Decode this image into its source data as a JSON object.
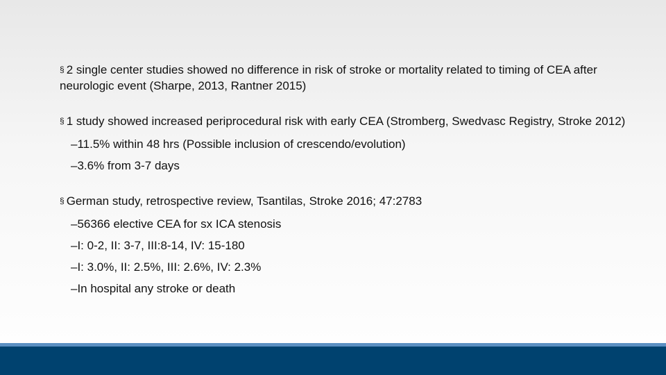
{
  "bullets": [
    {
      "text": "2 single center studies showed no difference in risk of stroke or mortality related to timing of CEA after neurologic event (Sharpe, 2013, Rantner 2015)",
      "sub": []
    },
    {
      "text": "1 study showed increased periprocedural risk with early CEA (Stromberg, Swedvasc Registry, Stroke 2012)",
      "sub": [
        "–11.5% within 48 hrs  (Possible inclusion of crescendo/evolution)",
        "–3.6% from 3-7 days"
      ]
    },
    {
      "text": "German study, retrospective review, Tsantilas, Stroke 2016; 47:2783",
      "sub": [
        "–56366 elective CEA for sx ICA stenosis",
        "–I: 0-2, II: 3-7, III:8-14, IV: 15-180",
        "–I: 3.0%, II: 2.5%, III: 2.6%, IV: 2.3%",
        "–In hospital  any stroke or death"
      ]
    }
  ]
}
